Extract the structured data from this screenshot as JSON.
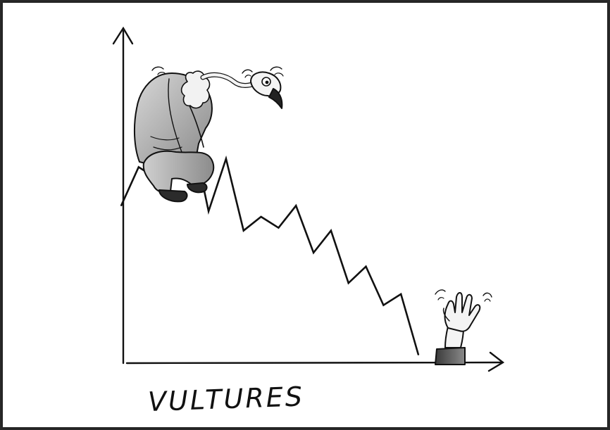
{
  "cartoon": {
    "caption": "VULTURES",
    "ink_color": "#111111",
    "paper_color": "#ffffff",
    "border_color": "#2a2a2a",
    "chart_data": {
      "type": "line",
      "title": "",
      "xlabel": "",
      "ylabel": "",
      "grid": false,
      "legend": "none",
      "x": [
        0,
        1,
        2,
        3,
        4,
        5,
        6,
        7,
        8,
        9,
        10,
        11,
        12,
        13,
        14,
        15,
        16,
        17
      ],
      "series": [
        {
          "values": [
            0.52,
            0.66,
            0.62,
            0.81,
            0.8,
            0.5,
            0.69,
            0.43,
            0.48,
            0.44,
            0.52,
            0.35,
            0.43,
            0.24,
            0.3,
            0.16,
            0.2,
            -0.02
          ]
        }
      ],
      "ylim": [
        -0.05,
        1.0
      ]
    }
  }
}
